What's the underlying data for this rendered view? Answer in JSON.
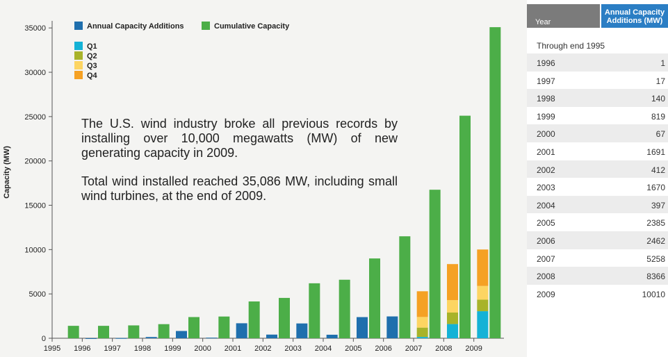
{
  "chart_data": {
    "type": "bar",
    "ylabel": "Capacity (MW)",
    "xlabel": "",
    "ylim": [
      0,
      36000
    ],
    "yticks": [
      0,
      5000,
      10000,
      15000,
      20000,
      25000,
      30000,
      35000
    ],
    "categories": [
      "1995",
      "1996",
      "1997",
      "1998",
      "1999",
      "2000",
      "2001",
      "2002",
      "2003",
      "2004",
      "2005",
      "2006",
      "2007",
      "2008",
      "2009"
    ],
    "legend": {
      "annual": "Annual Capacity Additions",
      "cumulative": "Cumulative Capacity",
      "quarters": [
        "Q1",
        "Q2",
        "Q3",
        "Q4"
      ]
    },
    "series": [
      {
        "name": "Annual Capacity Additions",
        "values": [
          0,
          1,
          17,
          140,
          819,
          67,
          1691,
          412,
          1670,
          397,
          2385,
          2462,
          null,
          null,
          null
        ]
      },
      {
        "name": "Cumulative Capacity",
        "values": [
          1400,
          1400,
          1450,
          1590,
          2390,
          2450,
          4150,
          4550,
          6200,
          6600,
          9000,
          11500,
          16750,
          25100,
          35086
        ]
      },
      {
        "name": "Q1",
        "values": [
          null,
          null,
          null,
          null,
          null,
          null,
          null,
          null,
          null,
          null,
          null,
          null,
          150,
          1600,
          3050
        ]
      },
      {
        "name": "Q2",
        "values": [
          null,
          null,
          null,
          null,
          null,
          null,
          null,
          null,
          null,
          null,
          null,
          null,
          1050,
          1300,
          1300
        ]
      },
      {
        "name": "Q3",
        "values": [
          null,
          null,
          null,
          null,
          null,
          null,
          null,
          null,
          null,
          null,
          null,
          null,
          1200,
          1400,
          1550
        ]
      },
      {
        "name": "Q4",
        "values": [
          null,
          null,
          null,
          null,
          null,
          null,
          null,
          null,
          null,
          null,
          null,
          null,
          2900,
          4066,
          4110
        ]
      }
    ],
    "colors": {
      "annual": "#1f6fad",
      "cumulative": "#4cae48",
      "q1": "#14b2d6",
      "q2": "#a8b32a",
      "q3": "#fdd562",
      "q4": "#f5a124"
    },
    "grid": false,
    "legend_position": "top-left"
  },
  "annotation": {
    "paragraph1": "The U.S. wind industry broke all previous records by installing over 10,000 megawatts (MW) of new generating capacity in 2009.",
    "paragraph2": "Total wind installed reached 35,086 MW, including small wind turbines, at the end of 2009."
  },
  "table": {
    "header_year": "Year",
    "header_additions": "Annual Capacity Additions (MW)",
    "through_label": "Through end 1995",
    "rows": [
      {
        "year": "1996",
        "value": "1"
      },
      {
        "year": "1997",
        "value": "17"
      },
      {
        "year": "1998",
        "value": "140"
      },
      {
        "year": "1999",
        "value": "819"
      },
      {
        "year": "2000",
        "value": "67"
      },
      {
        "year": "2001",
        "value": "1691"
      },
      {
        "year": "2002",
        "value": "412"
      },
      {
        "year": "2003",
        "value": "1670"
      },
      {
        "year": "2004",
        "value": "397"
      },
      {
        "year": "2005",
        "value": "2385"
      },
      {
        "year": "2006",
        "value": "2462"
      },
      {
        "year": "2007",
        "value": "5258"
      },
      {
        "year": "2008",
        "value": "8366"
      },
      {
        "year": "2009",
        "value": "10010"
      }
    ]
  }
}
